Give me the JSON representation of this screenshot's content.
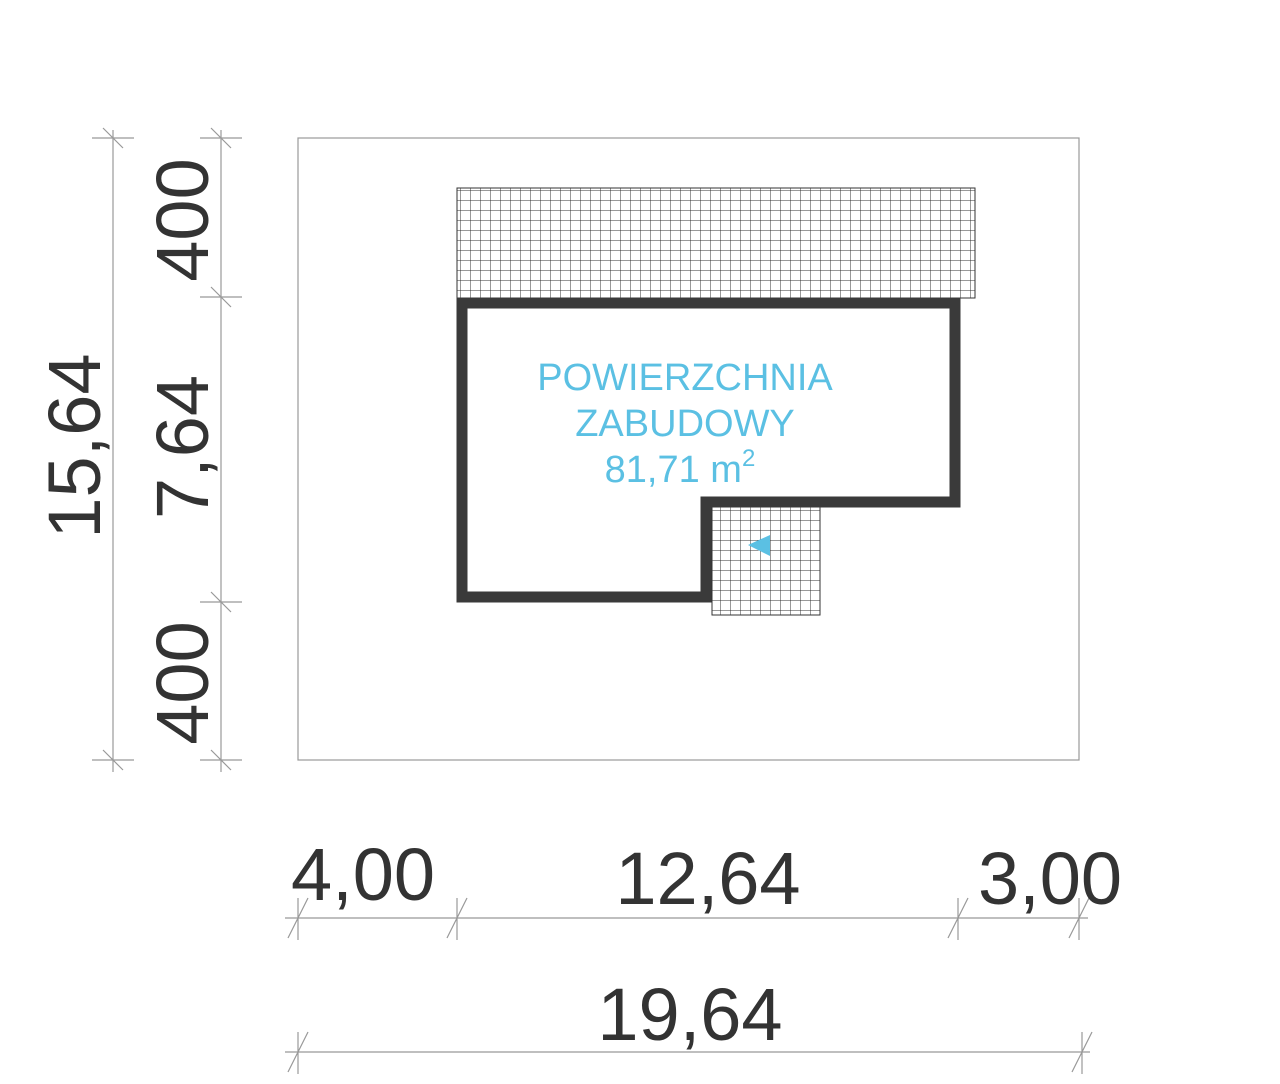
{
  "dimensions": {
    "vertical_total": "15,64",
    "vertical": [
      "400",
      "7,64",
      "400"
    ],
    "horizontal": [
      "4,00",
      "12,64",
      "3,00"
    ],
    "horizontal_total": "19,64"
  },
  "building": {
    "label_lines": [
      "POWIERZCHNIA",
      "ZABUDOWY"
    ],
    "area": "81,71 m",
    "area_exponent": "2"
  }
}
